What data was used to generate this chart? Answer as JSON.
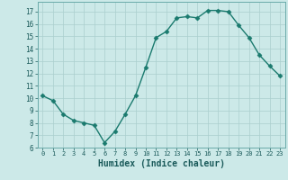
{
  "x": [
    0,
    1,
    2,
    3,
    4,
    5,
    6,
    7,
    8,
    9,
    10,
    11,
    12,
    13,
    14,
    15,
    16,
    17,
    18,
    19,
    20,
    21,
    22,
    23
  ],
  "y": [
    10.2,
    9.8,
    8.7,
    8.2,
    8.0,
    7.8,
    6.4,
    7.3,
    8.7,
    10.2,
    12.5,
    14.9,
    15.4,
    16.5,
    16.6,
    16.5,
    17.1,
    17.1,
    17.0,
    15.9,
    14.9,
    13.5,
    12.6,
    11.8
  ],
  "line_color": "#1a7a6e",
  "marker": "D",
  "markersize": 2.5,
  "linewidth": 1.0,
  "bg_color": "#cce9e8",
  "grid_color": "#aacfce",
  "xlabel": "Humidex (Indice chaleur)",
  "xlabel_fontsize": 7,
  "xlim": [
    -0.5,
    23.5
  ],
  "ylim": [
    6,
    17.8
  ],
  "yticks": [
    6,
    7,
    8,
    9,
    10,
    11,
    12,
    13,
    14,
    15,
    16,
    17
  ],
  "xticks": [
    0,
    1,
    2,
    3,
    4,
    5,
    6,
    7,
    8,
    9,
    10,
    11,
    12,
    13,
    14,
    15,
    16,
    17,
    18,
    19,
    20,
    21,
    22,
    23
  ],
  "tick_fontsize": 5.5
}
